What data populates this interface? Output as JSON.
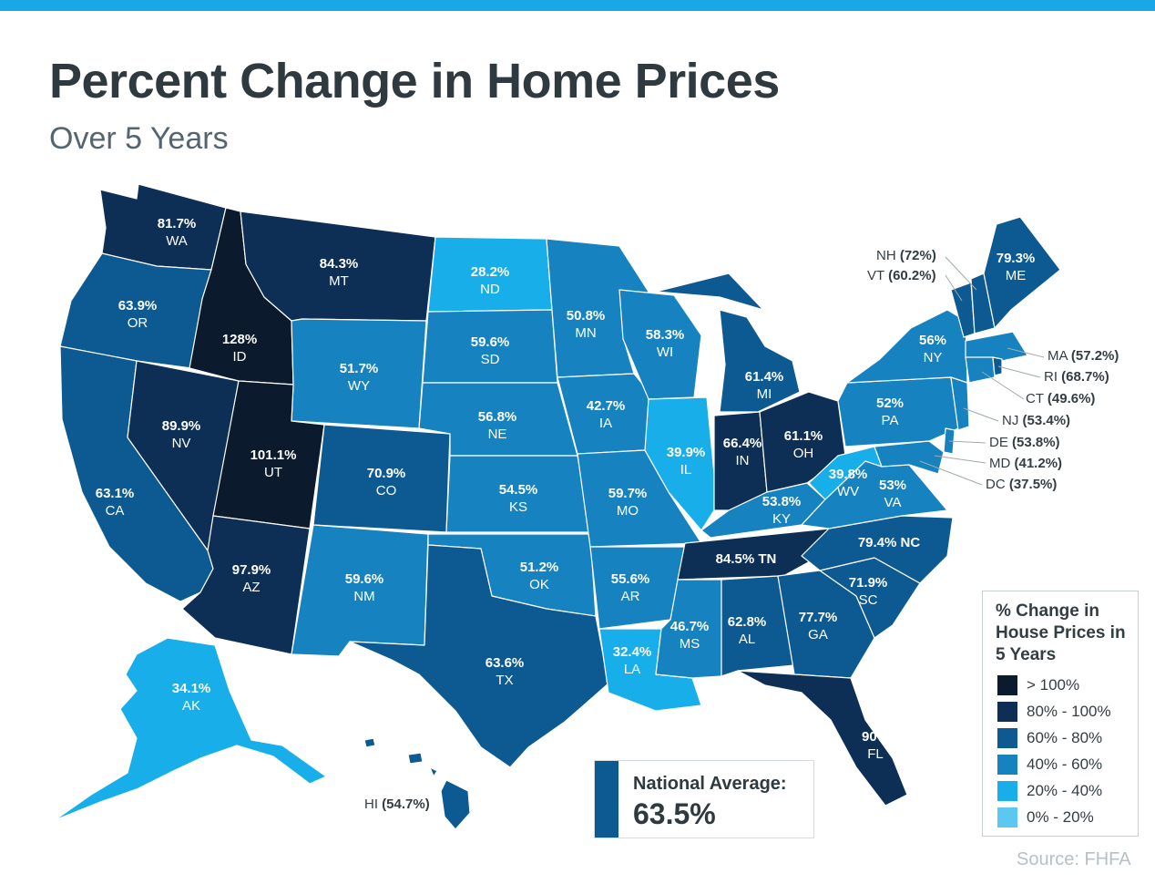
{
  "title": "Percent Change in Home Prices",
  "subtitle": "Over 5 Years",
  "colors": {
    "topbar": "#1aa7e8",
    "over100": "#0b1a2c",
    "c80_100": "#0e2f55",
    "c60_80": "#0d5a92",
    "c40_60": "#1683c0",
    "c20_40": "#18aeea",
    "c0_20": "#5cc8f2"
  },
  "states": [
    {
      "abbr": "WA",
      "value": "81.7%"
    },
    {
      "abbr": "OR",
      "value": "63.9%"
    },
    {
      "abbr": "CA",
      "value": "63.1%"
    },
    {
      "abbr": "NV",
      "value": "89.9%"
    },
    {
      "abbr": "ID",
      "value": "128%"
    },
    {
      "abbr": "MT",
      "value": "84.3%"
    },
    {
      "abbr": "WY",
      "value": "51.7%"
    },
    {
      "abbr": "UT",
      "value": "101.1%"
    },
    {
      "abbr": "AZ",
      "value": "97.9%"
    },
    {
      "abbr": "CO",
      "value": "70.9%"
    },
    {
      "abbr": "NM",
      "value": "59.6%"
    },
    {
      "abbr": "ND",
      "value": "28.2%"
    },
    {
      "abbr": "SD",
      "value": "59.6%"
    },
    {
      "abbr": "NE",
      "value": "56.8%"
    },
    {
      "abbr": "KS",
      "value": "54.5%"
    },
    {
      "abbr": "OK",
      "value": "51.2%"
    },
    {
      "abbr": "TX",
      "value": "63.6%"
    },
    {
      "abbr": "MN",
      "value": "50.8%"
    },
    {
      "abbr": "IA",
      "value": "42.7%"
    },
    {
      "abbr": "MO",
      "value": "59.7%"
    },
    {
      "abbr": "AR",
      "value": "55.6%"
    },
    {
      "abbr": "LA",
      "value": "32.4%"
    },
    {
      "abbr": "WI",
      "value": "58.3%"
    },
    {
      "abbr": "IL",
      "value": "39.9%"
    },
    {
      "abbr": "MI",
      "value": "61.4%"
    },
    {
      "abbr": "IN",
      "value": "66.4%"
    },
    {
      "abbr": "OH",
      "value": "61.1%"
    },
    {
      "abbr": "KY",
      "value": "53.8%"
    },
    {
      "abbr": "TN",
      "value": "84.5% TN"
    },
    {
      "abbr": "MS",
      "value": "46.7%"
    },
    {
      "abbr": "AL",
      "value": "62.8%"
    },
    {
      "abbr": "GA",
      "value": "77.7%"
    },
    {
      "abbr": "FL",
      "value": "90%"
    },
    {
      "abbr": "SC",
      "value": "71.9%"
    },
    {
      "abbr": "NC",
      "value": "79.4% NC"
    },
    {
      "abbr": "VA",
      "value": "53%"
    },
    {
      "abbr": "WV",
      "value": "39.8%"
    },
    {
      "abbr": "PA",
      "value": "52%"
    },
    {
      "abbr": "NY",
      "value": "56%"
    },
    {
      "abbr": "ME",
      "value": "79.3%"
    },
    {
      "abbr": "AK",
      "value": "34.1%"
    }
  ],
  "callouts": [
    {
      "label": "NH",
      "value": "(72%)"
    },
    {
      "label": "VT",
      "value": "(60.2%)"
    },
    {
      "label": "MA",
      "value": "(57.2%)"
    },
    {
      "label": "RI",
      "value": "(68.7%)"
    },
    {
      "label": "CT",
      "value": "(49.6%)"
    },
    {
      "label": "NJ",
      "value": "(53.4%)"
    },
    {
      "label": "DE",
      "value": "(53.8%)"
    },
    {
      "label": "MD",
      "value": "(41.2%)"
    },
    {
      "label": "DC",
      "value": "(37.5%)"
    },
    {
      "label": "HI",
      "value": "(54.7%)"
    }
  ],
  "legend": {
    "title": "% Change in House Prices in 5 Years",
    "items": [
      {
        "label": "> 100%",
        "color": "#0b1a2c"
      },
      {
        "label": "80% - 100%",
        "color": "#0e2f55"
      },
      {
        "label": "60% - 80%",
        "color": "#0d5a92"
      },
      {
        "label": "40% - 60%",
        "color": "#1683c0"
      },
      {
        "label": "20% - 40%",
        "color": "#18aeea"
      },
      {
        "label": "0% - 20%",
        "color": "#5cc8f2"
      }
    ]
  },
  "national": {
    "label": "National Average:",
    "value": "63.5%"
  },
  "source": "Source: FHFA"
}
